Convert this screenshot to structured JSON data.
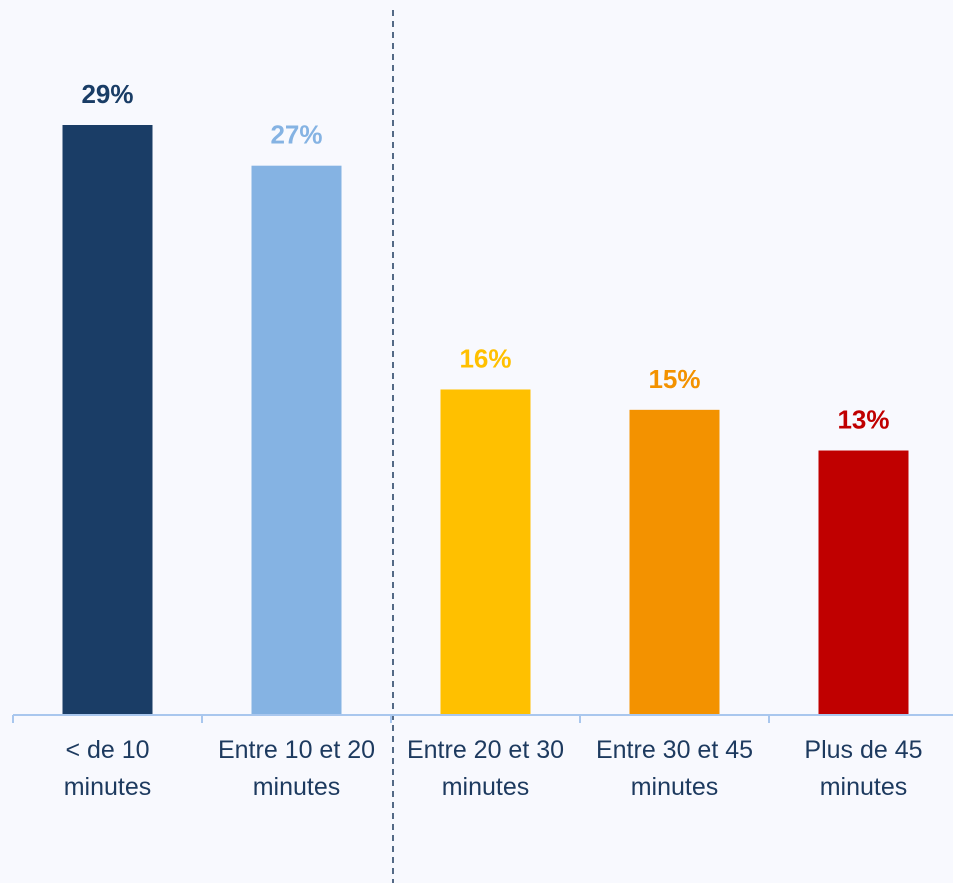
{
  "chart_data": {
    "type": "bar",
    "categories": [
      [
        "< de 10",
        "minutes"
      ],
      [
        "Entre 10 et 20",
        "minutes"
      ],
      [
        "Entre 20 et 30",
        "minutes"
      ],
      [
        "Entre 30 et 45",
        "minutes"
      ],
      [
        "Plus de 45",
        "minutes"
      ]
    ],
    "values": [
      29,
      27,
      16,
      15,
      13
    ],
    "value_labels": [
      "29%",
      "27%",
      "16%",
      "15%",
      "13%"
    ],
    "colors": [
      "#1a3d66",
      "#85b3e3",
      "#ffc000",
      "#f39200",
      "#c00000"
    ],
    "axis_color": "#a9c7ee",
    "divider_color": "#1d3a5f",
    "text_color": "#1d3a5f",
    "ylim": [
      0,
      29
    ],
    "grid": false,
    "title": "",
    "xlabel": "",
    "ylabel": ""
  }
}
